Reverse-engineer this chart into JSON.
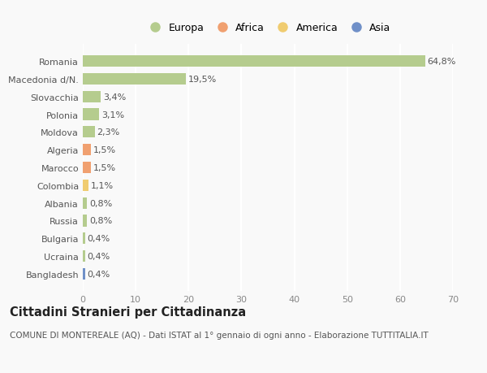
{
  "countries": [
    "Romania",
    "Macedonia d/N.",
    "Slovacchia",
    "Polonia",
    "Moldova",
    "Algeria",
    "Marocco",
    "Colombia",
    "Albania",
    "Russia",
    "Bulgaria",
    "Ucraina",
    "Bangladesh"
  ],
  "values": [
    64.8,
    19.5,
    3.4,
    3.1,
    2.3,
    1.5,
    1.5,
    1.1,
    0.8,
    0.8,
    0.4,
    0.4,
    0.4
  ],
  "labels": [
    "64,8%",
    "19,5%",
    "3,4%",
    "3,1%",
    "2,3%",
    "1,5%",
    "1,5%",
    "1,1%",
    "0,8%",
    "0,8%",
    "0,4%",
    "0,4%",
    "0,4%"
  ],
  "continents": [
    "Europa",
    "Europa",
    "Europa",
    "Europa",
    "Europa",
    "Africa",
    "Africa",
    "America",
    "Europa",
    "Europa",
    "Europa",
    "Europa",
    "Asia"
  ],
  "continent_colors": {
    "Europa": "#b5cc8e",
    "Africa": "#f0a070",
    "America": "#f0cc70",
    "Asia": "#7090c8"
  },
  "legend_order": [
    "Europa",
    "Africa",
    "America",
    "Asia"
  ],
  "title": "Cittadini Stranieri per Cittadinanza",
  "subtitle": "COMUNE DI MONTEREALE (AQ) - Dati ISTAT al 1° gennaio di ogni anno - Elaborazione TUTTITALIA.IT",
  "xlim": [
    0,
    70
  ],
  "xticks": [
    0,
    10,
    20,
    30,
    40,
    50,
    60,
    70
  ],
  "bg_color": "#f9f9f9",
  "grid_color": "#ffffff",
  "bar_height": 0.65,
  "label_fontsize": 8,
  "tick_fontsize": 8,
  "title_fontsize": 10.5,
  "subtitle_fontsize": 7.5
}
